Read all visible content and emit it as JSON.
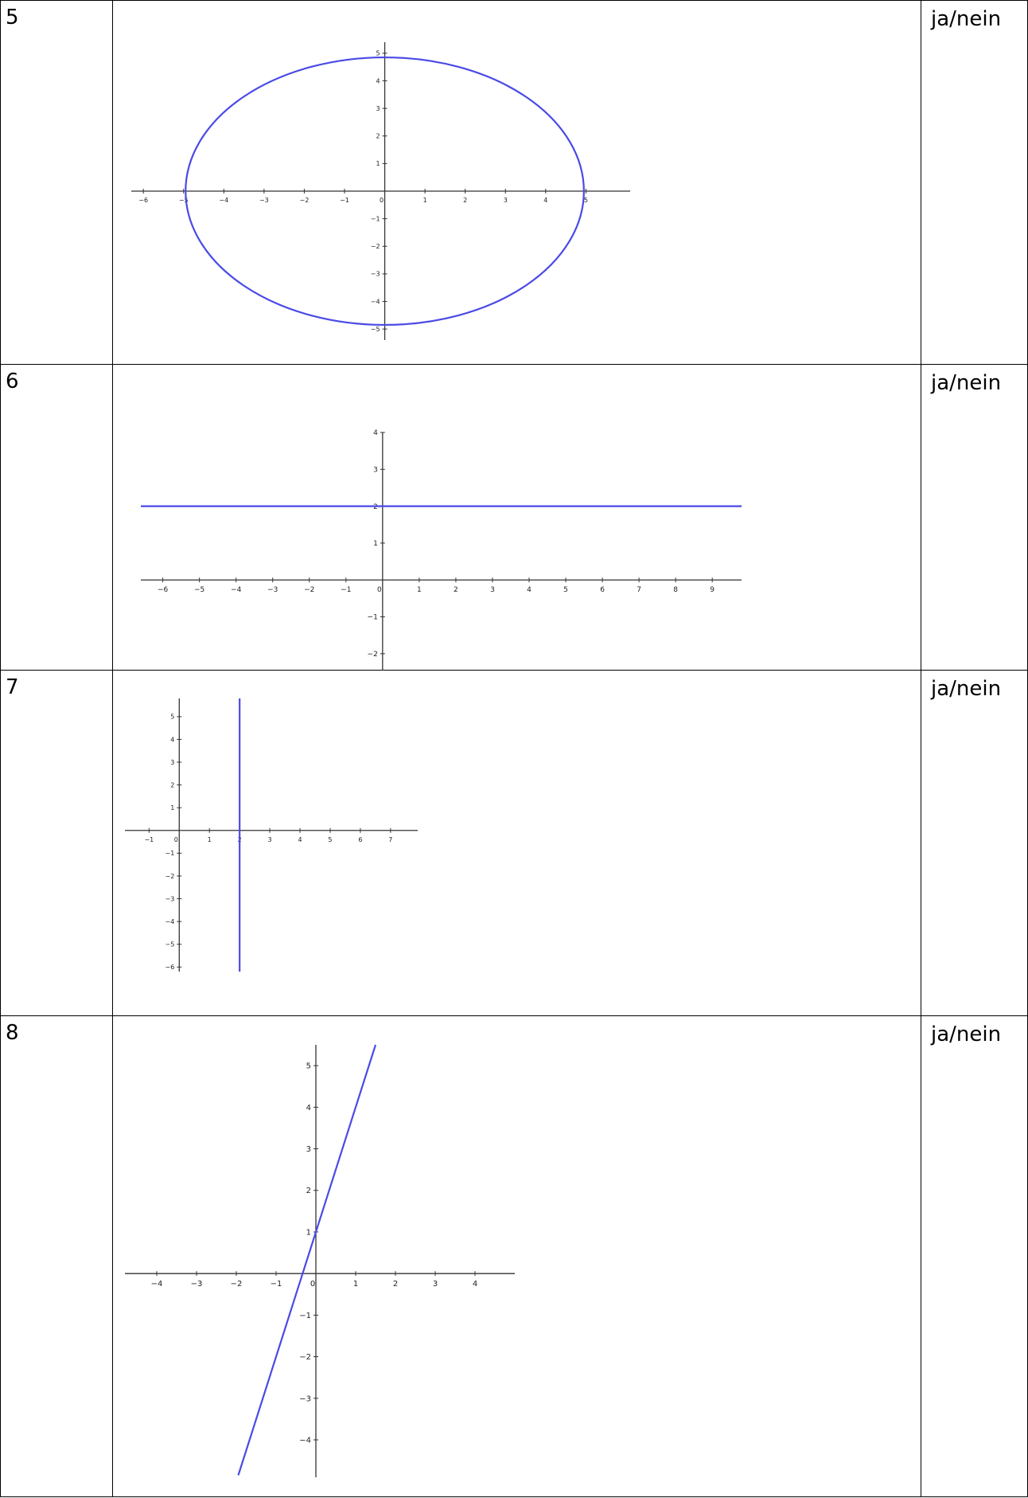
{
  "answer_text": "ja/nein",
  "rows": [
    {
      "number": "5",
      "plot": "ellipse"
    },
    {
      "number": "6",
      "plot": "horizontal-line"
    },
    {
      "number": "7",
      "plot": "vertical-line"
    },
    {
      "number": "8",
      "plot": "oblique-line"
    }
  ],
  "chart_data": [
    {
      "type": "line",
      "title": "",
      "x_ticks": [
        -6,
        -5,
        -4,
        -3,
        -2,
        -1,
        0,
        1,
        2,
        3,
        4,
        5
      ],
      "y_ticks": [
        -5,
        -4,
        -3,
        -2,
        -1,
        0,
        1,
        2,
        3,
        4,
        5
      ],
      "xlim": [
        -6.3,
        6.1
      ],
      "ylim": [
        -5.4,
        5.4
      ],
      "series": [
        {
          "curve": "ellipse",
          "center": [
            0,
            0
          ],
          "rx": 4.95,
          "ry": 4.85
        }
      ],
      "color": "#4a4ae6"
    },
    {
      "type": "line",
      "title": "",
      "x_ticks": [
        -6,
        -5,
        -4,
        -3,
        -2,
        -1,
        0,
        1,
        2,
        3,
        4,
        5,
        6,
        7,
        8,
        9
      ],
      "y_ticks": [
        -2,
        -1,
        0,
        1,
        2,
        3,
        4
      ],
      "xlim": [
        -6.6,
        9.8
      ],
      "ylim": [
        -2.5,
        4.0
      ],
      "series": [
        {
          "curve": "y = 2",
          "x": [
            -6.6,
            9.8
          ],
          "y": [
            2,
            2
          ]
        }
      ],
      "color": "#4a4ae6"
    },
    {
      "type": "line",
      "title": "",
      "x_ticks": [
        -1,
        0,
        1,
        2,
        3,
        4,
        5,
        6,
        7
      ],
      "y_ticks": [
        -6,
        -5,
        -4,
        -3,
        -2,
        -1,
        0,
        1,
        2,
        3,
        4,
        5
      ],
      "xlim": [
        -1.8,
        7.9
      ],
      "ylim": [
        -6.2,
        5.8
      ],
      "series": [
        {
          "curve": "x = 2",
          "x": [
            2,
            2
          ],
          "y": [
            -6.2,
            5.8
          ]
        }
      ],
      "color": "#4a4ae6"
    },
    {
      "type": "line",
      "title": "",
      "x_ticks": [
        -4,
        -3,
        -2,
        -1,
        0,
        1,
        2,
        3,
        4
      ],
      "y_ticks": [
        -4,
        -3,
        -2,
        -1,
        0,
        1,
        2,
        3,
        4,
        5
      ],
      "xlim": [
        -4.8,
        5.0
      ],
      "ylim": [
        -4.9,
        5.5
      ],
      "series": [
        {
          "curve": "y = 3x + 1",
          "x": [
            -1.95,
            1.5
          ],
          "y": [
            -4.85,
            5.5
          ]
        }
      ],
      "color": "#4a4ae6"
    }
  ]
}
